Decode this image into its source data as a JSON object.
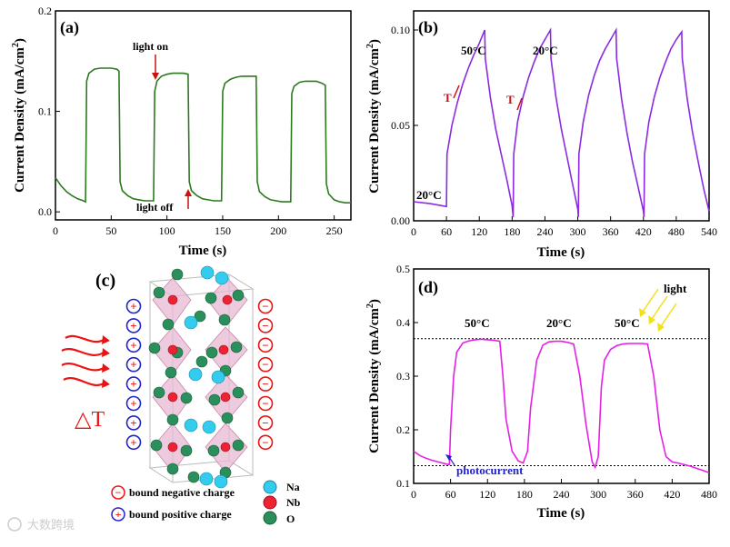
{
  "chart_data": [
    {
      "panel": "(a)",
      "type": "line",
      "color": "#2b7a1e",
      "xlabel": "Time (s)",
      "ylabel": "Current Density (mA/cm2)",
      "xlim": [
        0,
        265
      ],
      "ylim": [
        -0.008,
        0.2
      ],
      "xticks": [
        0,
        50,
        100,
        150,
        200,
        250
      ],
      "yticks": [
        0.0,
        0.1,
        0.2
      ],
      "x": [
        0,
        5,
        10,
        15,
        20,
        25,
        27,
        28,
        30,
        35,
        40,
        45,
        50,
        55,
        57,
        58,
        60,
        65,
        70,
        75,
        80,
        85,
        88,
        89,
        91,
        95,
        100,
        105,
        110,
        115,
        119,
        120,
        122,
        127,
        132,
        137,
        142,
        147,
        149,
        150,
        152,
        157,
        162,
        167,
        172,
        177,
        180,
        181,
        183,
        188,
        193,
        198,
        203,
        208,
        211,
        212,
        214,
        219,
        224,
        229,
        234,
        239,
        242,
        243,
        245,
        250,
        255,
        260,
        265
      ],
      "y": [
        0.034,
        0.026,
        0.02,
        0.016,
        0.013,
        0.011,
        0.01,
        0.13,
        0.138,
        0.142,
        0.143,
        0.143,
        0.143,
        0.142,
        0.14,
        0.03,
        0.021,
        0.016,
        0.013,
        0.012,
        0.011,
        0.011,
        0.011,
        0.12,
        0.13,
        0.135,
        0.137,
        0.138,
        0.138,
        0.138,
        0.137,
        0.03,
        0.021,
        0.016,
        0.013,
        0.012,
        0.011,
        0.011,
        0.011,
        0.12,
        0.128,
        0.132,
        0.134,
        0.135,
        0.135,
        0.135,
        0.135,
        0.03,
        0.02,
        0.015,
        0.012,
        0.011,
        0.01,
        0.01,
        0.01,
        0.118,
        0.125,
        0.129,
        0.13,
        0.13,
        0.13,
        0.128,
        0.126,
        0.028,
        0.018,
        0.012,
        0.01,
        0.009,
        0.009
      ],
      "annotations": [
        "light on",
        "light off"
      ]
    },
    {
      "panel": "(b)",
      "type": "line",
      "color": "#8a2be2",
      "xlabel": "Time (s)",
      "ylabel": "Current Density (mA/cm2)",
      "xlim": [
        0,
        540
      ],
      "ylim": [
        0,
        0.11
      ],
      "xticks": [
        0,
        60,
        120,
        180,
        240,
        300,
        360,
        420,
        480,
        540
      ],
      "yticks": [
        0.0,
        0.05,
        0.1
      ],
      "x": [
        0,
        30,
        60,
        61,
        70,
        80,
        90,
        100,
        110,
        120,
        130,
        131,
        140,
        150,
        160,
        170,
        180,
        182,
        183,
        190,
        200,
        210,
        220,
        230,
        240,
        250,
        251,
        260,
        270,
        280,
        290,
        300,
        301,
        302,
        310,
        320,
        330,
        340,
        350,
        360,
        370,
        371,
        380,
        390,
        400,
        410,
        420,
        421,
        422,
        430,
        440,
        450,
        460,
        470,
        480,
        490,
        491,
        500,
        510,
        520,
        530,
        540
      ],
      "y": [
        0.01,
        0.009,
        0.0075,
        0.035,
        0.05,
        0.062,
        0.072,
        0.08,
        0.087,
        0.093,
        0.1,
        0.085,
        0.065,
        0.048,
        0.035,
        0.022,
        0.008,
        0.002,
        0.035,
        0.052,
        0.065,
        0.075,
        0.083,
        0.09,
        0.095,
        0.1,
        0.085,
        0.065,
        0.048,
        0.034,
        0.02,
        0.006,
        0.002,
        0.035,
        0.052,
        0.066,
        0.076,
        0.084,
        0.09,
        0.095,
        0.1,
        0.085,
        0.064,
        0.046,
        0.031,
        0.018,
        0.005,
        0.002,
        0.035,
        0.052,
        0.065,
        0.075,
        0.083,
        0.09,
        0.095,
        0.099,
        0.085,
        0.064,
        0.046,
        0.031,
        0.017,
        0.005
      ],
      "annotations": [
        "20°C",
        "50°C",
        "20°C",
        "T",
        "T"
      ]
    },
    {
      "panel": "(d)",
      "type": "line",
      "color": "#e61fe6",
      "xlabel": "Time (s)",
      "ylabel": "Current Density (mA/cm2)",
      "xlim": [
        0,
        480
      ],
      "ylim": [
        0.1,
        0.5
      ],
      "xticks": [
        0,
        60,
        120,
        180,
        240,
        300,
        360,
        420,
        480
      ],
      "yticks": [
        0.1,
        0.2,
        0.3,
        0.4,
        0.5
      ],
      "x": [
        0,
        10,
        20,
        30,
        40,
        50,
        58,
        60,
        65,
        70,
        80,
        90,
        100,
        110,
        120,
        130,
        140,
        145,
        150,
        160,
        170,
        178,
        185,
        190,
        200,
        210,
        220,
        230,
        240,
        250,
        260,
        270,
        280,
        290,
        295,
        300,
        305,
        310,
        320,
        330,
        340,
        350,
        360,
        370,
        380,
        390,
        400,
        410,
        420,
        430,
        440,
        450,
        460,
        470,
        480
      ],
      "y": [
        0.16,
        0.152,
        0.147,
        0.143,
        0.14,
        0.137,
        0.135,
        0.2,
        0.3,
        0.345,
        0.362,
        0.366,
        0.368,
        0.369,
        0.368,
        0.367,
        0.365,
        0.3,
        0.22,
        0.16,
        0.142,
        0.138,
        0.16,
        0.24,
        0.33,
        0.358,
        0.364,
        0.365,
        0.365,
        0.363,
        0.36,
        0.3,
        0.21,
        0.14,
        0.13,
        0.15,
        0.28,
        0.33,
        0.35,
        0.357,
        0.36,
        0.361,
        0.361,
        0.361,
        0.36,
        0.3,
        0.2,
        0.15,
        0.14,
        0.138,
        0.135,
        0.132,
        0.128,
        0.124,
        0.12
      ],
      "reference_lines": [
        0.37,
        0.133
      ],
      "annotations": [
        "50°C",
        "20°C",
        "50°C",
        "light",
        "photocurrent"
      ]
    }
  ],
  "panels": {
    "a": {
      "label": "(a)",
      "ylabel": "Current Density (mA/cm",
      "ysup": "2",
      "yclose": ")",
      "xlabel": "Time (s)",
      "light_on": "light on",
      "light_off": "light off"
    },
    "b": {
      "label": "(b)",
      "ylabel": "Current Density (mA/cm",
      "ysup": "2",
      "yclose": ")",
      "xlabel": "Time (s)",
      "t1": "20°C",
      "t2": "50°C",
      "t3": "20°C",
      "t_up": "T",
      "t_down": "T"
    },
    "c": {
      "label": "(c)",
      "delta_t": "△T",
      "legend_neg": "bound negative charge",
      "legend_pos": "bound positive charge",
      "na": "Na",
      "nb": "Nb",
      "o": "O",
      "plus": "+",
      "minus": "−"
    },
    "d": {
      "label": "(d)",
      "ylabel": "Current Density (mA/cm",
      "ysup": "2",
      "yclose": ")",
      "xlabel": "Time (s)",
      "t1": "50°C",
      "t2": "20°C",
      "t3": "50°C",
      "light": "light",
      "photocurrent": "photocurrent"
    }
  },
  "colors": {
    "green": "#2b7a1e",
    "purple": "#8a2be2",
    "magenta": "#e61fe6",
    "red": "#cc1111",
    "blue": "#2222cc",
    "na": "#33ccee",
    "nb": "#ee2233",
    "o": "#2a8f5a",
    "oct": "#e8b8d4"
  },
  "watermark": "大数跨境"
}
